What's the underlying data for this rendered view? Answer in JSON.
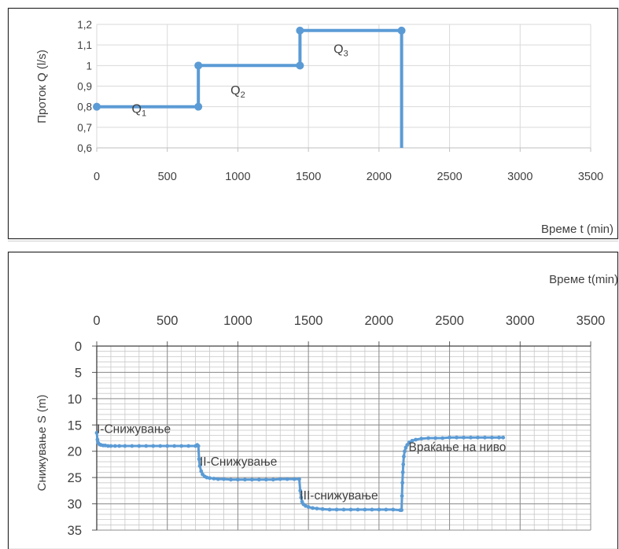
{
  "chart_data": [
    {
      "type": "line",
      "xlabel": "Време t (min)",
      "ylabel": "Проток Q (l/s)",
      "xlim": [
        0,
        3500
      ],
      "ylim": [
        0.6,
        1.2
      ],
      "x_ticks": [
        "0",
        "500",
        "1000",
        "1500",
        "2000",
        "2500",
        "3000",
        "3500"
      ],
      "y_ticks": [
        "0,6",
        "0,7",
        "0,8",
        "0,9",
        "1",
        "1,1",
        "1,2"
      ],
      "grid": true,
      "series": [
        {
          "points": [
            [
              0,
              0.8
            ],
            [
              720,
              0.8
            ],
            [
              720,
              1.0
            ],
            [
              1440,
              1.0
            ],
            [
              1440,
              1.17
            ],
            [
              2160,
              1.17
            ],
            [
              2160,
              0.6
            ]
          ],
          "markers": [
            [
              0,
              0.8
            ],
            [
              720,
              0.8
            ],
            [
              720,
              1.0
            ],
            [
              1440,
              1.0
            ],
            [
              1440,
              1.17
            ],
            [
              2160,
              1.17
            ]
          ]
        }
      ],
      "annotations": [
        {
          "letter": "Q",
          "sub": "1",
          "x": 300,
          "y": 0.77
        },
        {
          "letter": "Q",
          "sub": "2",
          "x": 1000,
          "y": 0.86
        },
        {
          "letter": "Q",
          "sub": "3",
          "x": 1730,
          "y": 1.06
        }
      ]
    },
    {
      "type": "scatter",
      "xlabel": "Време t(min)",
      "ylabel": "Снижување S (m)",
      "xlim": [
        0,
        3500
      ],
      "ylim": [
        0,
        35
      ],
      "y_inverted": true,
      "x_axis_position": "top",
      "x_ticks": [
        "0",
        "500",
        "1000",
        "1500",
        "2000",
        "2500",
        "3000",
        "3500"
      ],
      "y_ticks": [
        "0",
        "5",
        "10",
        "15",
        "20",
        "25",
        "30",
        "35"
      ],
      "grid": true,
      "series": [
        {
          "points": [
            [
              0,
              16.5
            ],
            [
              5,
              17.8
            ],
            [
              10,
              18.4
            ],
            [
              20,
              18.7
            ],
            [
              30,
              18.8
            ],
            [
              45,
              18.9
            ],
            [
              60,
              18.9
            ],
            [
              80,
              19.0
            ],
            [
              100,
              19.0
            ],
            [
              130,
              19.0
            ],
            [
              160,
              19.0
            ],
            [
              200,
              19.0
            ],
            [
              250,
              19.0
            ],
            [
              300,
              19.0
            ],
            [
              350,
              19.0
            ],
            [
              400,
              19.0
            ],
            [
              450,
              19.0
            ],
            [
              500,
              19.0
            ],
            [
              550,
              19.0
            ],
            [
              600,
              19.0
            ],
            [
              650,
              19.0
            ],
            [
              700,
              19.0
            ],
            [
              712,
              18.8
            ],
            [
              720,
              19.0
            ],
            [
              725,
              21.5
            ],
            [
              730,
              22.8
            ],
            [
              740,
              23.8
            ],
            [
              750,
              24.4
            ],
            [
              765,
              24.8
            ],
            [
              780,
              25.0
            ],
            [
              800,
              25.1
            ],
            [
              830,
              25.2
            ],
            [
              860,
              25.3
            ],
            [
              900,
              25.3
            ],
            [
              950,
              25.4
            ],
            [
              1000,
              25.4
            ],
            [
              1050,
              25.4
            ],
            [
              1100,
              25.4
            ],
            [
              1150,
              25.4
            ],
            [
              1200,
              25.4
            ],
            [
              1250,
              25.4
            ],
            [
              1300,
              25.3
            ],
            [
              1350,
              25.3
            ],
            [
              1400,
              25.3
            ],
            [
              1435,
              25.3
            ],
            [
              1442,
              27.5
            ],
            [
              1448,
              28.8
            ],
            [
              1455,
              29.6
            ],
            [
              1465,
              30.1
            ],
            [
              1480,
              30.4
            ],
            [
              1500,
              30.6
            ],
            [
              1530,
              30.8
            ],
            [
              1560,
              30.9
            ],
            [
              1600,
              31.0
            ],
            [
              1650,
              31.1
            ],
            [
              1700,
              31.1
            ],
            [
              1750,
              31.1
            ],
            [
              1800,
              31.1
            ],
            [
              1850,
              31.1
            ],
            [
              1900,
              31.1
            ],
            [
              1950,
              31.1
            ],
            [
              2000,
              31.1
            ],
            [
              2050,
              31.1
            ],
            [
              2100,
              31.1
            ],
            [
              2150,
              31.2
            ],
            [
              2160,
              31.2
            ],
            [
              2163,
              28.5
            ],
            [
              2166,
              26.0
            ],
            [
              2169,
              24.0
            ],
            [
              2172,
              22.5
            ],
            [
              2176,
              21.0
            ],
            [
              2182,
              20.0
            ],
            [
              2190,
              19.3
            ],
            [
              2200,
              18.8
            ],
            [
              2215,
              18.3
            ],
            [
              2235,
              18.0
            ],
            [
              2260,
              17.8
            ],
            [
              2300,
              17.6
            ],
            [
              2350,
              17.5
            ],
            [
              2400,
              17.5
            ],
            [
              2450,
              17.5
            ],
            [
              2500,
              17.4
            ],
            [
              2550,
              17.4
            ],
            [
              2600,
              17.4
            ],
            [
              2650,
              17.4
            ],
            [
              2700,
              17.4
            ],
            [
              2750,
              17.4
            ],
            [
              2800,
              17.4
            ],
            [
              2850,
              17.4
            ],
            [
              2880,
              17.4
            ]
          ]
        }
      ],
      "annotations": [
        {
          "text": "I-Снижување",
          "x": 0,
          "y": 16.5
        },
        {
          "text": "II-Снижување",
          "x": 730,
          "y": 22.7
        },
        {
          "text": "III-снижување",
          "x": 1440,
          "y": 29.2
        },
        {
          "text": "Враќање на ниво",
          "x": 2210,
          "y": 20.0
        }
      ]
    }
  ]
}
